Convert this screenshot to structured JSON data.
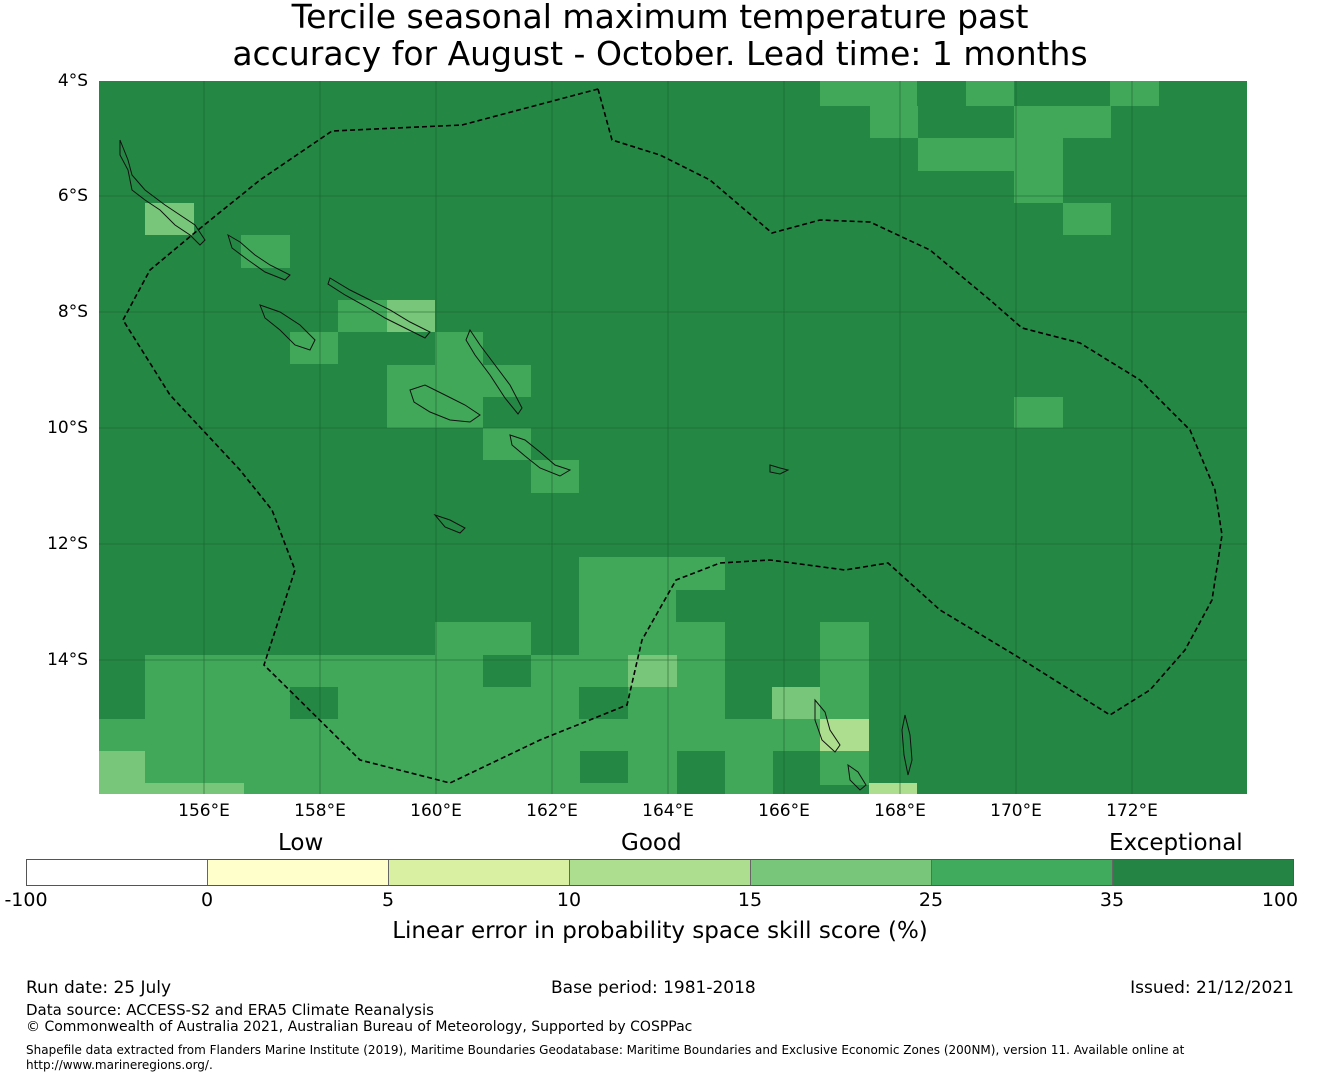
{
  "title": {
    "line1": "Tercile seasonal maximum temperature past",
    "line2": "accuracy for August - October. Lead time: 1 months"
  },
  "map": {
    "background_color": "#248844",
    "lat_labels": [
      "4°S",
      "6°S",
      "8°S",
      "10°S",
      "12°S",
      "14°S"
    ],
    "lon_labels": [
      "156°E",
      "158°E",
      "160°E",
      "162°E",
      "164°E",
      "166°E",
      "168°E",
      "170°E",
      "172°E"
    ],
    "eez_boundary": "dashed",
    "cell_colors": {
      "c25_35": "#41a85a",
      "c15_25": "#78c679",
      "c10_15": "#addd8e",
      "c5_10": "#d9f0a3"
    }
  },
  "colorbar": {
    "categories": {
      "low": "Low",
      "good": "Good",
      "exceptional": "Exceptional"
    },
    "ticks": [
      "-100",
      "0",
      "5",
      "10",
      "15",
      "25",
      "35",
      "100"
    ],
    "colors": [
      "#ffffff",
      "#ffffcc",
      "#d9f0a3",
      "#addd8e",
      "#78c679",
      "#41ab5d",
      "#238443"
    ],
    "label": "Linear error in probability space skill score (%)"
  },
  "footer": {
    "run_date": "Run date: 25 July",
    "base_period": "Base period: 1981-2018",
    "issued": "Issued: 21/12/2021",
    "data_source": "Data source: ACCESS-S2 and ERA5 Climate Reanalysis",
    "copyright": "© Commonwealth of Australia 2021, Australian Bureau of Meteorology, Supported by COSPPac",
    "shapefile_line1": "Shapefile data extracted from Flanders Marine Institute (2019), Maritime Boundaries Geodatabase: Maritime Boundaries and Exclusive Economic Zones (200NM), version 11. Available online at",
    "shapefile_line2": "http://www.marineregions.org/."
  }
}
